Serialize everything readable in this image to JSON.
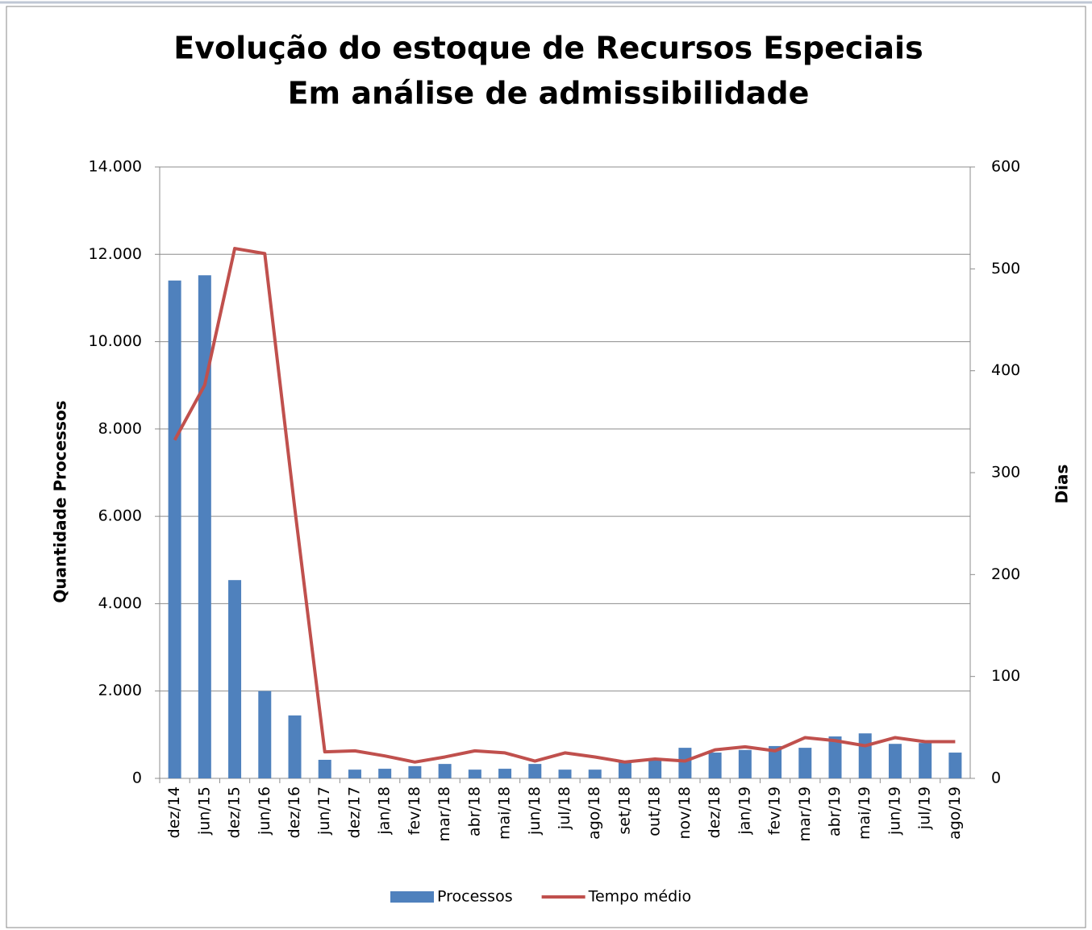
{
  "chart_data": {
    "type": "bar-line",
    "title": "Evolução do estoque de Recursos Especiais",
    "subtitle": "Em análise de admissibilidade",
    "y_label": "Quantidade Processos",
    "y2_label": "Dias",
    "categories": [
      "dez/14",
      "jun/15",
      "dez/15",
      "jun/16",
      "dez/16",
      "jun/17",
      "dez/17",
      "jan/18",
      "fev/18",
      "mar/18",
      "abr/18",
      "mai/18",
      "jun/18",
      "jul/18",
      "ago/18",
      "set/18",
      "out/18",
      "nov/18",
      "dez/18",
      "jan/19",
      "fev/19",
      "mar/19",
      "abr/19",
      "mai/19",
      "jun/19",
      "jul/19",
      "ago/19"
    ],
    "series": [
      {
        "name": "Processos",
        "type": "bar",
        "color": "#4f81bd",
        "values": [
          11400,
          11520,
          4540,
          2000,
          1440,
          425,
          200,
          220,
          280,
          330,
          200,
          220,
          330,
          200,
          200,
          390,
          460,
          700,
          590,
          650,
          740,
          700,
          960,
          1030,
          790,
          810,
          590
        ]
      },
      {
        "name": "Tempo médio",
        "type": "line",
        "axis": "y2",
        "color": "#c0504d",
        "values": [
          332,
          386,
          520,
          515,
          265,
          26,
          27,
          22,
          16,
          21,
          27,
          25,
          17,
          25,
          21,
          16,
          19,
          17,
          28,
          31,
          27,
          40,
          37,
          32,
          40,
          36,
          36
        ]
      }
    ],
    "ylim": [
      0,
      14000
    ],
    "yticks": [
      0,
      {
        "value": 2000,
        "label": "2.000"
      },
      {
        "value": 4000,
        "label": "4.000"
      },
      {
        "value": 6000,
        "label": "6.000"
      },
      {
        "value": 8000,
        "label": "8.000"
      },
      {
        "value": 10000,
        "label": "10.000"
      },
      {
        "value": 12000,
        "label": "12.000"
      },
      {
        "value": 14000,
        "label": "14.000"
      }
    ],
    "y2lim": [
      0,
      600
    ],
    "y2ticks": [
      0,
      100,
      200,
      300,
      400,
      500,
      600
    ],
    "grid": true,
    "legend": "bottom"
  }
}
